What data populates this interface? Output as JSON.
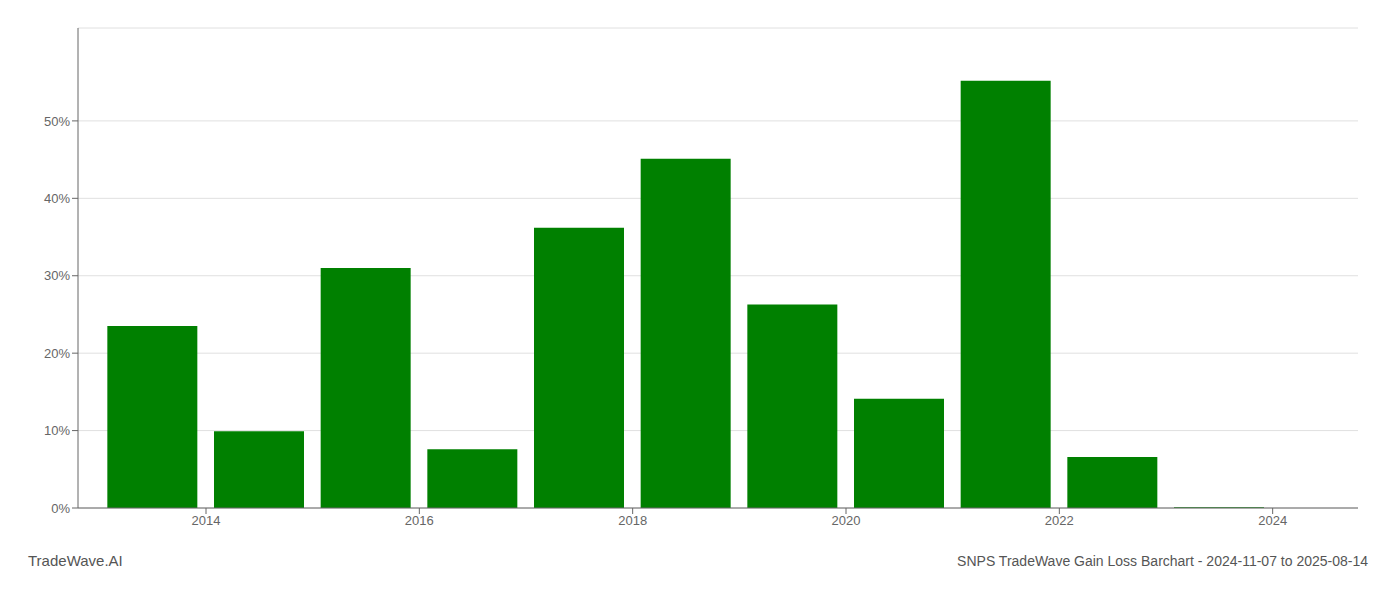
{
  "chart_data": {
    "type": "bar",
    "title": "SNPS TradeWave Gain Loss Barchart - 2024-11-07 to 2025-08-14",
    "annotations": [
      "TradeWave.AI"
    ],
    "x": [
      2013.5,
      2014.5,
      2015.5,
      2016.5,
      2017.5,
      2018.5,
      2019.5,
      2020.5,
      2021.5,
      2022.5,
      2023.5
    ],
    "values": [
      0.235,
      0.099,
      0.31,
      0.076,
      0.362,
      0.451,
      0.263,
      0.141,
      0.552,
      0.066,
      0.001
    ],
    "color": "#008000",
    "xlim": [
      2012.8,
      2024.8
    ],
    "xticks": [
      2014,
      2016,
      2018,
      2020,
      2022,
      2024
    ],
    "ylim": [
      0,
      0.62
    ],
    "yticks": [
      {
        "value": 0.0,
        "label": "0%"
      },
      {
        "value": 0.1,
        "label": "10%"
      },
      {
        "value": 0.2,
        "label": "20%"
      },
      {
        "value": 0.3,
        "label": "30%"
      },
      {
        "value": 0.4,
        "label": "40%"
      },
      {
        "value": 0.5,
        "label": "50%"
      }
    ],
    "grid": true
  }
}
